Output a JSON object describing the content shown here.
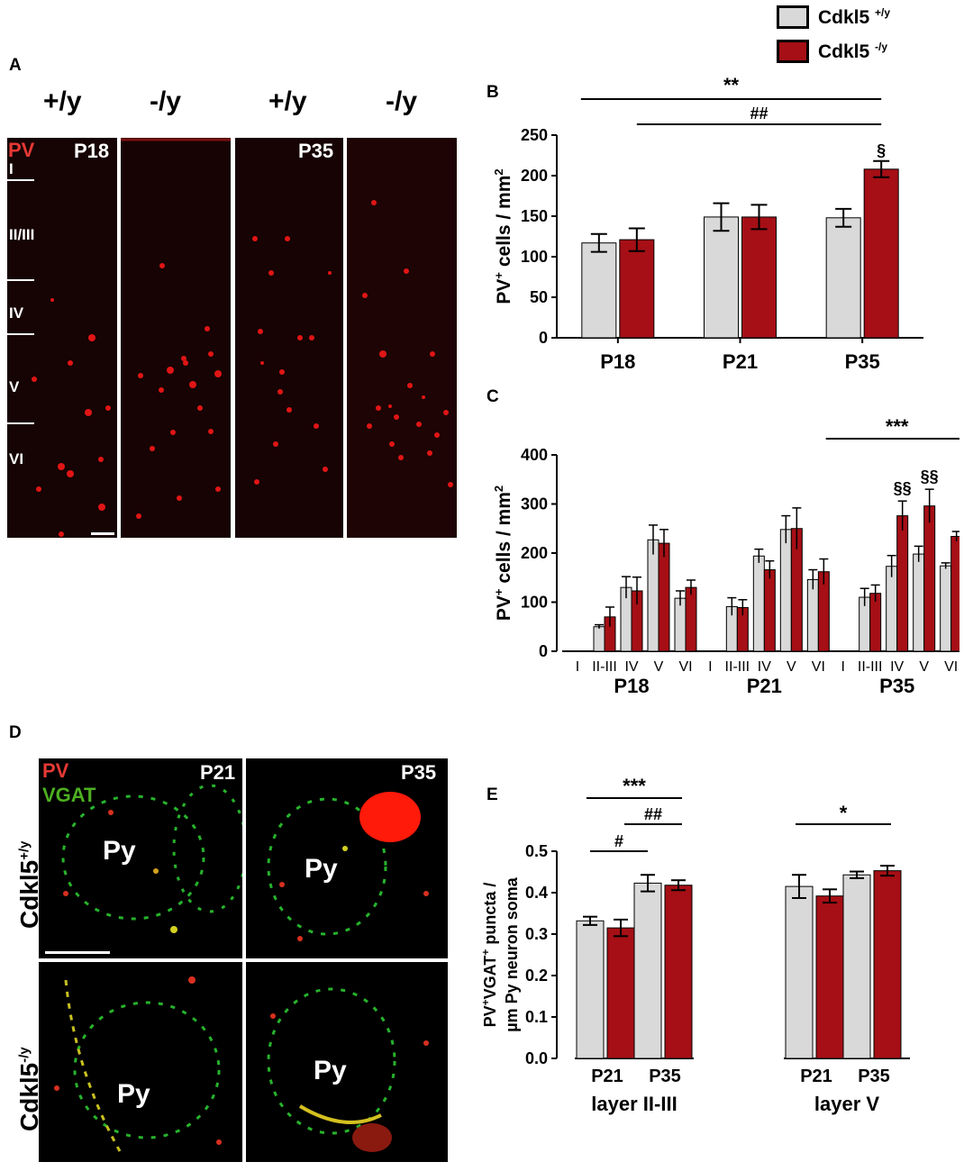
{
  "legend": {
    "wt": {
      "base": "Cdkl5",
      "sup": "+/y",
      "color": "#d9d9d9"
    },
    "ko": {
      "base": "Cdkl5",
      "sup": "-/y",
      "color": "#a50f15"
    }
  },
  "panel_a": {
    "label": "A",
    "genotypes": [
      "+/y",
      "-/y",
      "+/y",
      "-/y"
    ],
    "stain": "PV",
    "ages": [
      "P18",
      "P35"
    ],
    "layers": [
      "I",
      "II/III",
      "IV",
      "V",
      "VI"
    ]
  },
  "panel_d": {
    "label": "D",
    "stain_pv": "PV",
    "stain_vgat": "VGAT",
    "ages": [
      "P21",
      "P35"
    ],
    "row_labels": [
      {
        "base": "Cdkl5",
        "sup": "+/y"
      },
      {
        "base": "Cdkl5",
        "sup": "-/y"
      }
    ],
    "cell_label": "Py"
  },
  "chart_data": [
    {
      "id": "B",
      "type": "bar",
      "panel_label": "B",
      "categories": [
        "P18",
        "P21",
        "P35"
      ],
      "series": [
        {
          "name": "Cdkl5 +/y",
          "values": [
            117,
            149,
            148
          ],
          "errors": [
            11,
            17,
            11
          ]
        },
        {
          "name": "Cdkl5 -/y",
          "values": [
            121,
            149,
            208
          ],
          "errors": [
            14,
            15,
            10
          ]
        }
      ],
      "ylabel": "PV+ cells / mm2",
      "ylim": [
        0,
        250
      ],
      "yticks": [
        0,
        50,
        100,
        150,
        200,
        250
      ],
      "annotations": [
        {
          "text": "**",
          "from": "P18",
          "to": "P35"
        },
        {
          "text": "##",
          "from": "P18 -/y",
          "to": "P35 -/y"
        },
        {
          "text": "§",
          "at": "P35 -/y"
        }
      ]
    },
    {
      "id": "C",
      "type": "bar",
      "panel_label": "C",
      "groups": [
        "P18",
        "P21",
        "P35"
      ],
      "categories": [
        "I",
        "II-III",
        "IV",
        "V",
        "VI"
      ],
      "series": [
        {
          "name": "Cdkl5 +/y",
          "values": [
            [
              0,
              50,
              130,
              227,
              108
            ],
            [
              0,
              91,
              194,
              248,
              146
            ],
            [
              0,
              110,
              173,
              198,
              174
            ]
          ],
          "errors": [
            [
              0,
              4,
              22,
              30,
              15
            ],
            [
              0,
              18,
              14,
              28,
              20
            ],
            [
              0,
              18,
              22,
              16,
              6
            ]
          ]
        },
        {
          "name": "Cdkl5 -/y",
          "values": [
            [
              0,
              70,
              123,
              220,
              130
            ],
            [
              0,
              89,
              166,
              250,
              162
            ],
            [
              0,
              118,
              276,
              296,
              234
            ]
          ],
          "errors": [
            [
              0,
              20,
              28,
              28,
              15
            ],
            [
              0,
              16,
              18,
              42,
              26
            ],
            [
              0,
              17,
              30,
              34,
              10
            ]
          ]
        }
      ],
      "ylabel": "PV+ cells / mm2",
      "ylim": [
        0,
        400
      ],
      "yticks": [
        0,
        100,
        200,
        300,
        400
      ],
      "annotations": [
        {
          "text": "***",
          "span": "P35"
        },
        {
          "text": "§§",
          "at": "P35 IV -/y"
        },
        {
          "text": "§§",
          "at": "P35 V -/y"
        }
      ]
    },
    {
      "id": "E",
      "type": "bar",
      "panel_label": "E",
      "groups": [
        "layer II-III",
        "layer V"
      ],
      "categories": [
        "P21",
        "P35"
      ],
      "series": [
        {
          "name": "Cdkl5 +/y",
          "values": [
            [
              0.332,
              0.423
            ],
            [
              0.415,
              0.443
            ]
          ],
          "errors": [
            [
              0.01,
              0.02
            ],
            [
              0.028,
              0.008
            ]
          ]
        },
        {
          "name": "Cdkl5 -/y",
          "values": [
            [
              0.315,
              0.418
            ],
            [
              0.392,
              0.453
            ]
          ],
          "errors": [
            [
              0.02,
              0.012
            ],
            [
              0.016,
              0.012
            ]
          ]
        }
      ],
      "ylabel": "PV+VGAT+ puncta / µm Py neuron soma",
      "ylim": [
        0,
        0.5
      ],
      "yticks": [
        "0.0",
        "0.1",
        "0.2",
        "0.3",
        "0.4",
        "0.5"
      ],
      "annotations": [
        {
          "text": "***",
          "group": "layer II-III"
        },
        {
          "text": "##",
          "group": "layer II-III"
        },
        {
          "text": "#",
          "group": "layer II-III"
        },
        {
          "text": "*",
          "group": "layer V"
        }
      ]
    }
  ]
}
